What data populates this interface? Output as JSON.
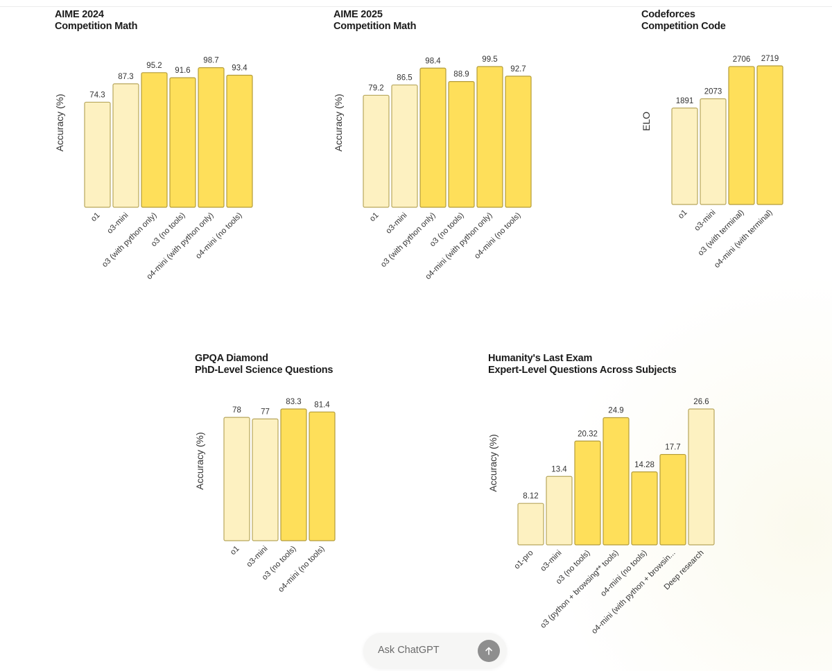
{
  "chat_input": {
    "placeholder": "Ask ChatGPT",
    "send_icon": "arrow-up-icon"
  },
  "colors": {
    "bar_light_fill": "#fdf1c1",
    "bar_dark_fill": "#fedf5a",
    "bar_light_stroke": "#b7a65c",
    "bar_dark_stroke": "#b39c3a"
  },
  "chart_data": [
    {
      "id": "aime2024",
      "type": "bar",
      "title": "AIME 2024",
      "subtitle": "Competition Math",
      "xlabel": "",
      "ylabel": "Accuracy (%)",
      "ylim": [
        0,
        100
      ],
      "grid": false,
      "categories": [
        "o1",
        "o3-mini",
        "o3 (with python only)",
        "o3 (no tools)",
        "o4-mini (with python only)",
        "o4-mini (no tools)"
      ],
      "values": [
        74.3,
        87.3,
        95.2,
        91.6,
        98.7,
        93.4
      ],
      "value_labels": [
        "74.3",
        "87.3",
        "95.2",
        "91.6",
        "98.7",
        "93.4"
      ],
      "highlight": [
        false,
        false,
        true,
        true,
        true,
        true
      ]
    },
    {
      "id": "aime2025",
      "type": "bar",
      "title": "AIME 2025",
      "subtitle": "Competition Math",
      "xlabel": "",
      "ylabel": "Accuracy (%)",
      "ylim": [
        0,
        100
      ],
      "grid": false,
      "categories": [
        "o1",
        "o3-mini",
        "o3 (with python only)",
        "o3 (no tools)",
        "o4-mini (with python only)",
        "o4-mini (no tools)"
      ],
      "values": [
        79.2,
        86.5,
        98.4,
        88.9,
        99.5,
        92.7
      ],
      "value_labels": [
        "79.2",
        "86.5",
        "98.4",
        "88.9",
        "99.5",
        "92.7"
      ],
      "highlight": [
        false,
        false,
        true,
        true,
        true,
        true
      ]
    },
    {
      "id": "codeforces",
      "type": "bar",
      "title": "Codeforces",
      "subtitle": "Competition Code",
      "xlabel": "",
      "ylabel": "ELO",
      "ylim": [
        0,
        2719
      ],
      "grid": false,
      "categories": [
        "o1",
        "o3-mini",
        "o3 (with terminal)",
        "o4-mini (with terminal)"
      ],
      "values": [
        1891,
        2073,
        2706,
        2719
      ],
      "value_labels": [
        "1891",
        "2073",
        "2706",
        "2719"
      ],
      "highlight": [
        false,
        false,
        true,
        true
      ]
    },
    {
      "id": "gpqa",
      "type": "bar",
      "title": "GPQA Diamond",
      "subtitle": "PhD-Level Science Questions",
      "xlabel": "",
      "ylabel": "Accuracy (%)",
      "ylim": [
        0,
        83.3
      ],
      "grid": false,
      "categories": [
        "o1",
        "o3-mini",
        "o3 (no tools)",
        "o4-mini (no tools)"
      ],
      "values": [
        78,
        77,
        83.3,
        81.4
      ],
      "value_labels": [
        "78",
        "77",
        "83.3",
        "81.4"
      ],
      "highlight": [
        false,
        false,
        true,
        true
      ]
    },
    {
      "id": "hle",
      "type": "bar",
      "title": "Humanity's Last Exam",
      "subtitle": "Expert-Level Questions Across Subjects",
      "xlabel": "",
      "ylabel": "Accuracy (%)",
      "ylim": [
        0,
        26.6
      ],
      "grid": false,
      "categories": [
        "o1-pro",
        "o3-mini",
        "o3 (no tools)",
        "o3 (python + browsing** tools)",
        "o4-mini (no tools)",
        "o4-mini (with python + browsin...",
        "Deep research"
      ],
      "values": [
        8.12,
        13.4,
        20.32,
        24.9,
        14.28,
        17.7,
        26.6
      ],
      "value_labels": [
        "8.12",
        "13.4",
        "20.32",
        "24.9",
        "14.28",
        "17.7",
        "26.6"
      ],
      "highlight": [
        false,
        false,
        true,
        true,
        true,
        true,
        false
      ]
    }
  ]
}
